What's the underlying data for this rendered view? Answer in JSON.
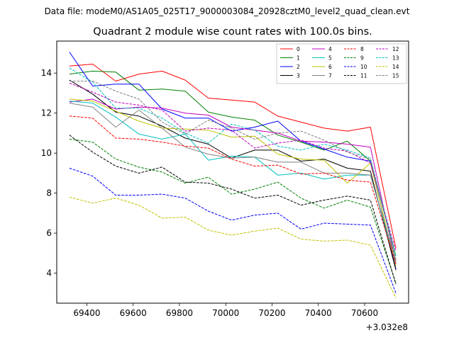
{
  "figure": {
    "suptitle": "Data file: modeM0/AS1A05_025T17_9000003084_20928cztM0_level2_quad_clean.evt"
  },
  "chart_data": {
    "type": "line",
    "title": "Quadrant 2 module wise count rates with 100.0s bins.",
    "xlabel": "",
    "ylabel": "",
    "x_offset_label": "+3.032e8",
    "x_offset": 303200000,
    "xlim": [
      69270,
      70790
    ],
    "ylim": [
      2.5,
      15.6
    ],
    "xticks": [
      69400,
      69600,
      69800,
      70000,
      70200,
      70400,
      70600
    ],
    "xtick_labels": [
      "69400",
      "69600",
      "69800",
      "70000",
      "70200",
      "70400",
      "70600"
    ],
    "yticks": [
      4,
      6,
      8,
      10,
      12,
      14
    ],
    "ytick_labels": [
      "4",
      "6",
      "8",
      "10",
      "12",
      "14"
    ],
    "grid": false,
    "legend_position": "top-right",
    "legend_columns": 4,
    "x": [
      69325,
      69425,
      69525,
      69625,
      69725,
      69825,
      69925,
      70025,
      70125,
      70225,
      70325,
      70425,
      70525,
      70625,
      70735
    ],
    "series": [
      {
        "name": "0",
        "color": "#ff0000",
        "dash": "solid",
        "values": [
          14.35,
          14.45,
          13.6,
          13.95,
          14.1,
          13.65,
          12.75,
          12.65,
          12.55,
          11.85,
          11.55,
          11.25,
          11.1,
          11.3,
          5.25
        ]
      },
      {
        "name": "1",
        "color": "#008000",
        "dash": "solid",
        "values": [
          13.95,
          14.1,
          14.05,
          13.15,
          13.2,
          13.1,
          12.05,
          11.8,
          11.65,
          10.9,
          10.55,
          10.15,
          10.6,
          9.6,
          4.85
        ]
      },
      {
        "name": "2",
        "color": "#0000ff",
        "dash": "solid",
        "values": [
          15.05,
          13.35,
          13.45,
          13.45,
          12.2,
          11.75,
          11.75,
          11.1,
          11.3,
          11.6,
          10.6,
          10.2,
          9.8,
          9.6,
          4.2
        ]
      },
      {
        "name": "3",
        "color": "#000000",
        "dash": "solid",
        "values": [
          13.65,
          12.95,
          12.05,
          11.85,
          11.35,
          10.75,
          10.45,
          9.75,
          10.15,
          10.15,
          9.6,
          9.7,
          9.25,
          9.1,
          4.15
        ]
      },
      {
        "name": "4",
        "color": "#c000c0",
        "dash": "solid",
        "values": [
          12.55,
          12.7,
          12.2,
          12.3,
          12.25,
          12.0,
          11.9,
          11.3,
          11.15,
          11.0,
          10.6,
          10.55,
          10.45,
          10.3,
          4.45
        ]
      },
      {
        "name": "5",
        "color": "#00c0c0",
        "dash": "solid",
        "values": [
          12.6,
          12.5,
          11.8,
          10.95,
          10.7,
          10.95,
          9.65,
          9.85,
          9.8,
          8.9,
          9.0,
          8.7,
          8.9,
          8.9,
          4.45
        ]
      },
      {
        "name": "6",
        "color": "#c0c000",
        "dash": "solid",
        "values": [
          12.7,
          12.6,
          12.1,
          11.6,
          11.25,
          11.2,
          11.15,
          10.8,
          10.85,
          9.95,
          9.7,
          9.65,
          8.5,
          9.5,
          4.35
        ]
      },
      {
        "name": "7",
        "color": "#808080",
        "dash": "solid",
        "values": [
          12.5,
          12.3,
          11.3,
          12.15,
          11.25,
          10.3,
          9.95,
          9.75,
          9.8,
          9.55,
          9.55,
          9.0,
          9.0,
          8.9,
          4.6
        ]
      },
      {
        "name": "8",
        "color": "#ff0000",
        "dash": "dashed",
        "values": [
          11.85,
          11.75,
          10.75,
          10.7,
          10.55,
          10.35,
          10.25,
          9.7,
          9.35,
          9.4,
          8.95,
          9.0,
          8.65,
          8.55,
          4.45
        ]
      },
      {
        "name": "9",
        "color": "#008000",
        "dash": "dashed",
        "values": [
          10.7,
          10.55,
          9.7,
          9.3,
          9.05,
          8.5,
          8.8,
          7.95,
          8.2,
          8.55,
          7.75,
          7.25,
          7.65,
          7.3,
          3.5
        ]
      },
      {
        "name": "10",
        "color": "#0000ff",
        "dash": "dashed",
        "values": [
          9.25,
          8.85,
          7.9,
          7.9,
          7.95,
          7.75,
          7.1,
          6.65,
          6.9,
          7.0,
          6.2,
          6.5,
          6.45,
          6.4,
          3.0
        ]
      },
      {
        "name": "11",
        "color": "#000000",
        "dash": "dashed",
        "values": [
          10.9,
          10.05,
          9.35,
          9.0,
          9.3,
          8.55,
          8.5,
          8.2,
          7.75,
          7.9,
          7.4,
          7.65,
          7.85,
          7.65,
          3.45
        ]
      },
      {
        "name": "12",
        "color": "#c000c0",
        "dash": "dashed",
        "values": [
          13.5,
          13.05,
          12.55,
          12.4,
          12.15,
          11.1,
          11.25,
          11.15,
          10.25,
          10.5,
          10.65,
          10.25,
          10.1,
          9.5,
          5.1
        ]
      },
      {
        "name": "13",
        "color": "#00c0c0",
        "dash": "dashed",
        "values": [
          14.25,
          13.55,
          12.25,
          12.25,
          11.75,
          11.0,
          10.5,
          11.45,
          11.15,
          10.35,
          10.15,
          10.45,
          10.15,
          9.75,
          4.85
        ]
      },
      {
        "name": "14",
        "color": "#c0c000",
        "dash": "dashed",
        "values": [
          7.8,
          7.5,
          7.75,
          7.4,
          6.75,
          6.8,
          6.15,
          5.9,
          6.1,
          6.25,
          5.7,
          5.6,
          5.65,
          5.4,
          2.75
        ]
      },
      {
        "name": "15",
        "color": "#808080",
        "dash": "dashed",
        "values": [
          13.6,
          13.6,
          13.1,
          12.7,
          11.55,
          10.95,
          11.65,
          11.25,
          10.7,
          11.0,
          11.1,
          10.65,
          10.05,
          9.7,
          4.7
        ]
      }
    ]
  }
}
